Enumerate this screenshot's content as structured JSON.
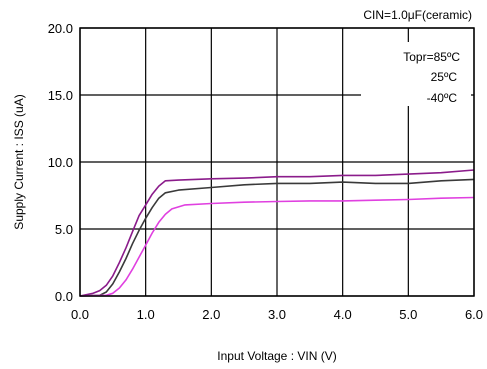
{
  "chart_data": {
    "type": "line",
    "annotation": "CIN=1.0μF(ceramic)",
    "xlabel": "Input Voltage : VIN (V)",
    "ylabel": "Supply Current : ISS (uA)",
    "xlim": [
      0,
      6
    ],
    "ylim": [
      0,
      20
    ],
    "x_ticks": [
      "0.0",
      "1.0",
      "2.0",
      "3.0",
      "4.0",
      "5.0",
      "6.0"
    ],
    "y_ticks": [
      "0.0",
      "5.0",
      "10.0",
      "15.0",
      "20.0"
    ],
    "grid": true,
    "legend_title": "Topr=85ºC",
    "legend_entries": [
      "25ºC",
      "-40ºC"
    ],
    "series": [
      {
        "name": "85ºC",
        "color": "#8b1c8b",
        "x": [
          0.0,
          0.2,
          0.3,
          0.4,
          0.5,
          0.6,
          0.7,
          0.8,
          0.9,
          1.0,
          1.1,
          1.2,
          1.3,
          1.5,
          2.0,
          2.5,
          3.0,
          3.5,
          4.0,
          4.5,
          5.0,
          5.5,
          6.0
        ],
        "y": [
          0.0,
          0.2,
          0.4,
          0.8,
          1.5,
          2.5,
          3.6,
          4.8,
          6.0,
          6.8,
          7.6,
          8.2,
          8.6,
          8.65,
          8.75,
          8.8,
          8.9,
          8.9,
          9.0,
          9.0,
          9.1,
          9.2,
          9.4
        ]
      },
      {
        "name": "25ºC",
        "color": "#3a3a3a",
        "x": [
          0.0,
          0.3,
          0.4,
          0.5,
          0.6,
          0.7,
          0.8,
          0.9,
          1.0,
          1.1,
          1.2,
          1.3,
          1.5,
          2.0,
          2.5,
          3.0,
          3.5,
          4.0,
          4.5,
          5.0,
          5.5,
          6.0
        ],
        "y": [
          0.0,
          0.05,
          0.3,
          0.9,
          1.8,
          2.8,
          3.9,
          4.9,
          5.8,
          6.6,
          7.3,
          7.7,
          7.9,
          8.1,
          8.3,
          8.4,
          8.4,
          8.5,
          8.4,
          8.4,
          8.6,
          8.7
        ]
      },
      {
        "name": "-40ºC",
        "color": "#e040e0",
        "x": [
          0.0,
          0.4,
          0.5,
          0.6,
          0.7,
          0.8,
          0.9,
          1.0,
          1.1,
          1.2,
          1.3,
          1.4,
          1.6,
          2.0,
          2.5,
          3.0,
          3.5,
          4.0,
          4.5,
          5.0,
          5.5,
          6.0
        ],
        "y": [
          0.0,
          0.05,
          0.2,
          0.6,
          1.2,
          2.0,
          2.9,
          3.8,
          4.7,
          5.5,
          6.1,
          6.5,
          6.8,
          6.9,
          7.0,
          7.05,
          7.1,
          7.1,
          7.15,
          7.2,
          7.3,
          7.35
        ]
      }
    ]
  }
}
